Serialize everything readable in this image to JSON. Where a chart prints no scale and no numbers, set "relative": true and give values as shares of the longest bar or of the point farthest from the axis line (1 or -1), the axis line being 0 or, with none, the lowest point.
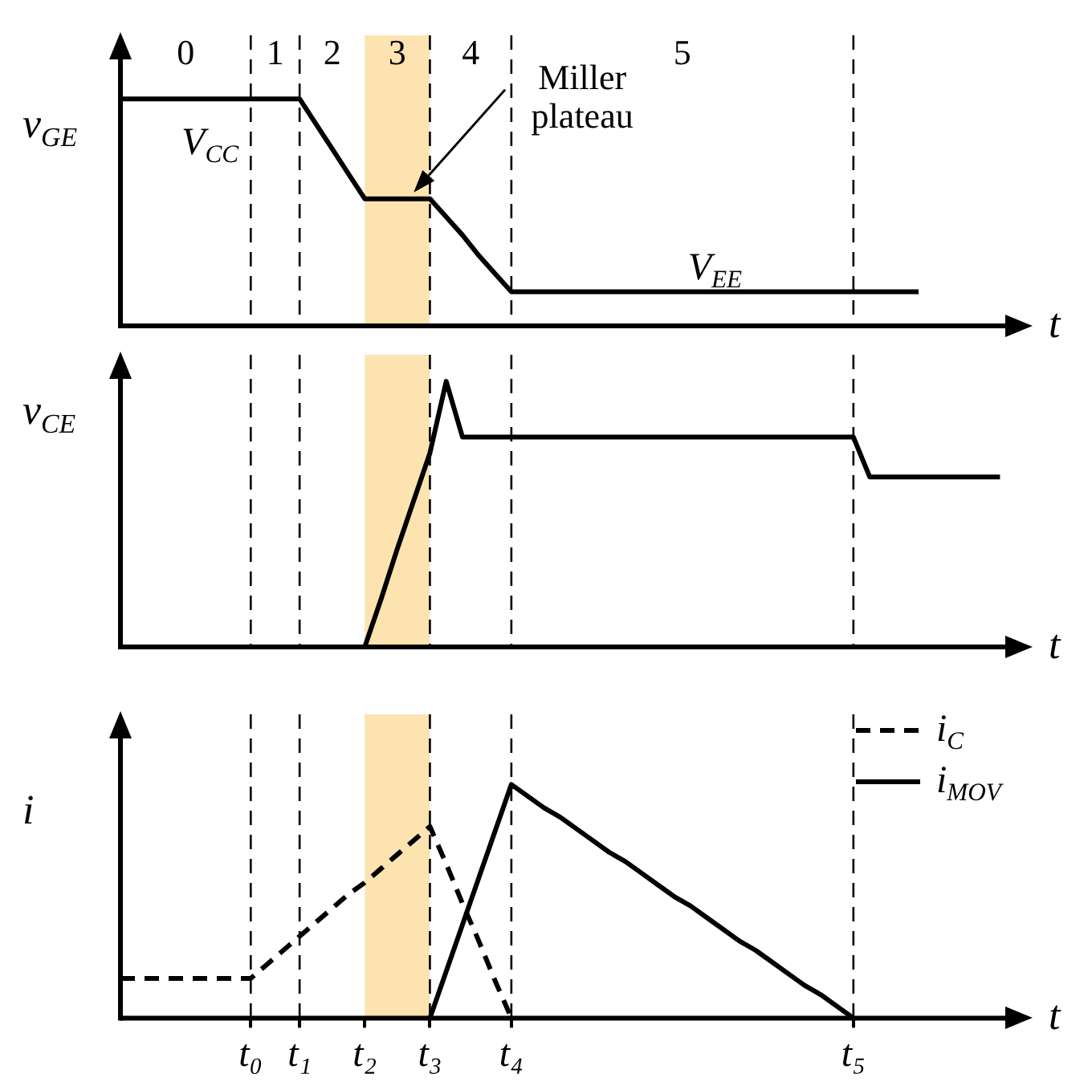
{
  "chart_data": [
    {
      "type": "line",
      "ylabel": "v$_{GE}$",
      "xlabel": "t",
      "relative": true,
      "tick_labels": false,
      "categories": [
        null,
        null,
        null,
        null,
        null,
        null,
        null,
        null,
        "t₀",
        null,
        null,
        "t₁",
        null,
        null,
        null,
        "t₂",
        null,
        null,
        null,
        "t₃",
        null,
        null,
        null,
        null,
        "t₄",
        null,
        null,
        null,
        null,
        null,
        null,
        null,
        null,
        null,
        null,
        null,
        null,
        null,
        null,
        null,
        null,
        null,
        null,
        null,
        null,
        "t₅",
        null,
        null,
        null,
        null,
        null,
        null,
        null,
        null,
        null,
        null,
        null
      ],
      "series": [
        {
          "color": "#000000",
          "line_style": "solid",
          "values": [
            1,
            1,
            1,
            1,
            1,
            1,
            1,
            1,
            1,
            1,
            1,
            1,
            0.89,
            0.78,
            0.67,
            0.56,
            0.56,
            0.56,
            0.56,
            0.56,
            0.48,
            0.4,
            0.31,
            0.23,
            0.15,
            0.15,
            0.15,
            0.15,
            0.15,
            0.15,
            0.15,
            0.15,
            0.15,
            0.15,
            0.15,
            0.15,
            0.15,
            0.15,
            0.15,
            0.15,
            0.15,
            0.15,
            0.15,
            0.15,
            0.15,
            0.15,
            0.15,
            0.15,
            0.15,
            0.15,
            null,
            null,
            null,
            null,
            null,
            null,
            null
          ]
        }
      ],
      "bands": [
        {
          "axis": "x",
          "from": "t₂",
          "to": "t₃",
          "color": "#fde3b0"
        }
      ],
      "ref_lines": [
        {
          "axis": "x",
          "value": "t₀",
          "line_style": "dashed"
        },
        {
          "axis": "x",
          "value": "t₁",
          "line_style": "dashed"
        },
        {
          "axis": "x",
          "value": "t₃",
          "line_style": "dashed"
        },
        {
          "axis": "x",
          "value": "t₄",
          "line_style": "dashed"
        },
        {
          "axis": "x",
          "value": "t₅",
          "line_style": "dashed"
        }
      ],
      "annotations": [
        "0",
        "1",
        "2",
        "3",
        "4",
        "5",
        {
          "text": "V$_{CC}$",
          "y": 1
        },
        "Miller plateau",
        {
          "text": "V$_{EE}$",
          "y": 0.15
        }
      ]
    },
    {
      "type": "line",
      "ylabel": "v$_{CE}$",
      "xlabel": "t",
      "relative": true,
      "tick_labels": false,
      "categories": [
        null,
        null,
        null,
        null,
        null,
        null,
        null,
        null,
        "t₀",
        null,
        null,
        "t₁",
        null,
        null,
        null,
        "t₂",
        null,
        null,
        null,
        "t₃",
        null,
        null,
        null,
        null,
        "t₄",
        null,
        null,
        null,
        null,
        null,
        null,
        null,
        null,
        null,
        null,
        null,
        null,
        null,
        null,
        null,
        null,
        null,
        null,
        null,
        null,
        "t₅",
        null,
        null,
        null,
        null,
        null,
        null,
        null,
        null,
        null,
        null,
        null
      ],
      "series": [
        {
          "color": "#000000",
          "line_style": "solid",
          "values": [
            null,
            null,
            null,
            null,
            null,
            null,
            null,
            null,
            null,
            null,
            null,
            null,
            null,
            null,
            null,
            0,
            0.18,
            0.37,
            0.55,
            0.73,
            1,
            0.79,
            0.79,
            0.79,
            0.79,
            0.79,
            0.79,
            0.79,
            0.79,
            0.79,
            0.79,
            0.79,
            0.79,
            0.79,
            0.79,
            0.79,
            0.79,
            0.79,
            0.79,
            0.79,
            0.79,
            0.79,
            0.79,
            0.79,
            0.79,
            0.79,
            0.64,
            0.64,
            0.64,
            0.64,
            0.64,
            0.64,
            0.64,
            0.64,
            0.64,
            null,
            null
          ]
        }
      ],
      "bands": [
        {
          "axis": "x",
          "from": "t₂",
          "to": "t₃",
          "color": "#fde3b0"
        }
      ],
      "ref_lines": [
        {
          "axis": "x",
          "value": "t₀",
          "line_style": "dashed"
        },
        {
          "axis": "x",
          "value": "t₁",
          "line_style": "dashed"
        },
        {
          "axis": "x",
          "value": "t₃",
          "line_style": "dashed"
        },
        {
          "axis": "x",
          "value": "t₄",
          "line_style": "dashed"
        },
        {
          "axis": "x",
          "value": "t₅",
          "line_style": "dashed"
        }
      ]
    },
    {
      "type": "line",
      "ylabel": "i",
      "xlabel": "t",
      "relative": true,
      "tick_labels": "x",
      "legend": "top right",
      "categories": [
        null,
        null,
        null,
        null,
        null,
        null,
        null,
        null,
        "t₀",
        null,
        null,
        "t₁",
        null,
        null,
        null,
        "t₂",
        null,
        null,
        null,
        "t₃",
        null,
        null,
        null,
        null,
        "t₄",
        null,
        null,
        null,
        null,
        null,
        null,
        null,
        null,
        null,
        null,
        null,
        null,
        null,
        null,
        null,
        null,
        null,
        null,
        null,
        null,
        "t₅",
        null,
        null,
        null,
        null,
        null,
        null,
        null,
        null,
        null,
        null,
        null
      ],
      "series": [
        {
          "name": "i$_{C}$",
          "color": "#000000",
          "line_style": "dashed",
          "values": [
            0.17,
            0.17,
            0.17,
            0.17,
            0.17,
            0.17,
            0.17,
            0.17,
            0.17,
            0.23,
            0.29,
            0.35,
            0.41,
            0.47,
            0.53,
            0.58,
            0.64,
            0.7,
            0.76,
            0.82,
            0.66,
            0.49,
            0.33,
            0.16,
            0,
            null,
            null,
            null,
            null,
            null,
            null,
            null,
            null,
            null,
            null,
            null,
            null,
            null,
            null,
            null,
            null,
            null,
            null,
            null,
            null,
            null,
            null,
            null,
            null,
            null,
            null,
            null,
            null,
            null,
            null,
            null,
            null
          ]
        },
        {
          "name": "i$_{MOV}$",
          "color": "#000000",
          "line_style": "solid",
          "values": [
            null,
            null,
            null,
            null,
            null,
            null,
            null,
            null,
            null,
            null,
            null,
            null,
            null,
            null,
            null,
            null,
            null,
            null,
            null,
            0,
            0.2,
            0.4,
            0.6,
            0.8,
            1,
            0.95,
            0.9,
            0.86,
            0.81,
            0.76,
            0.71,
            0.67,
            0.62,
            0.57,
            0.52,
            0.48,
            0.43,
            0.38,
            0.33,
            0.29,
            0.24,
            0.19,
            0.14,
            0.1,
            0.05,
            0,
            null,
            null,
            null,
            null,
            null,
            null,
            null,
            null,
            null,
            null,
            null
          ]
        }
      ],
      "bands": [
        {
          "axis": "x",
          "from": "t₂",
          "to": "t₃",
          "color": "#fde3b0"
        }
      ],
      "ref_lines": [
        {
          "axis": "x",
          "value": "t₀",
          "line_style": "dashed"
        },
        {
          "axis": "x",
          "value": "t₁",
          "line_style": "dashed"
        },
        {
          "axis": "x",
          "value": "t₃",
          "line_style": "dashed"
        },
        {
          "axis": "x",
          "value": "t₄",
          "line_style": "dashed"
        },
        {
          "axis": "x",
          "value": "t₅",
          "line_style": "dashed"
        }
      ]
    }
  ]
}
